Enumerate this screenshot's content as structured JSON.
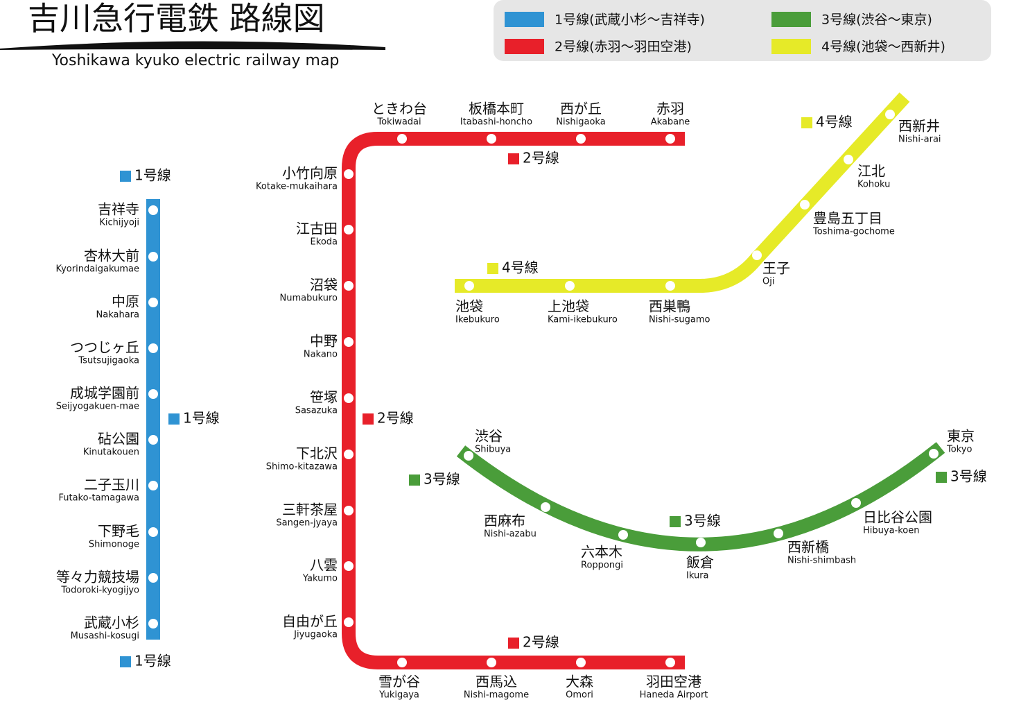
{
  "header": {
    "title": "吉川急行電鉄 路線図",
    "subtitle": "Yoshikawa kyuko electric railway map"
  },
  "legend": [
    {
      "label": "1号線(武蔵小杉〜吉祥寺)",
      "color": "#2f93d3"
    },
    {
      "label": "2号線(赤羽〜羽田空港)",
      "color": "#e8202a"
    },
    {
      "label": "3号線(渋谷〜東京)",
      "color": "#4a9d3a"
    },
    {
      "label": "4号線(池袋〜西新井)",
      "color": "#e6ea28"
    }
  ],
  "lines": [
    {
      "color": "#2f93d3",
      "labels": [
        "1号線",
        "1号線",
        "1号線"
      ],
      "stations": [
        {
          "name": "吉祥寺",
          "name_en": "Kichijyoji"
        },
        {
          "name": "杏林大前",
          "name_en": "Kyorindaigakumae"
        },
        {
          "name": "中原",
          "name_en": "Nakahara"
        },
        {
          "name": "つつじヶ丘",
          "name_en": "Tsutsujigaoka"
        },
        {
          "name": "成城学園前",
          "name_en": "Seijyogakuen-mae"
        },
        {
          "name": "砧公園",
          "name_en": "Kinutakouen"
        },
        {
          "name": "二子玉川",
          "name_en": "Futako-tamagawa"
        },
        {
          "name": "下野毛",
          "name_en": "Shimonoge"
        },
        {
          "name": "等々力競技場",
          "name_en": "Todoroki-kyogijyo"
        },
        {
          "name": "武蔵小杉",
          "name_en": "Musashi-kosugi"
        }
      ]
    },
    {
      "color": "#e8202a",
      "labels": [
        "2号線",
        "2号線",
        "2号線"
      ],
      "stations": [
        {
          "name": "赤羽",
          "name_en": "Akabane"
        },
        {
          "name": "西が丘",
          "name_en": "Nishigaoka"
        },
        {
          "name": "板橋本町",
          "name_en": "Itabashi-honcho"
        },
        {
          "name": "ときわ台",
          "name_en": "Tokiwadai"
        },
        {
          "name": "小竹向原",
          "name_en": "Kotake-mukaihara"
        },
        {
          "name": "江古田",
          "name_en": "Ekoda"
        },
        {
          "name": "沼袋",
          "name_en": "Numabukuro"
        },
        {
          "name": "中野",
          "name_en": "Nakano"
        },
        {
          "name": "笹塚",
          "name_en": "Sasazuka"
        },
        {
          "name": "下北沢",
          "name_en": "Shimo-kitazawa"
        },
        {
          "name": "三軒茶屋",
          "name_en": "Sangen-jyaya"
        },
        {
          "name": "八雲",
          "name_en": "Yakumo"
        },
        {
          "name": "自由が丘",
          "name_en": "Jiyugaoka"
        },
        {
          "name": "雪が谷",
          "name_en": "Yukigaya"
        },
        {
          "name": "西馬込",
          "name_en": "Nishi-magome"
        },
        {
          "name": "大森",
          "name_en": "Omori"
        },
        {
          "name": "羽田空港",
          "name_en": "Haneda Airport"
        }
      ]
    },
    {
      "color": "#4a9d3a",
      "labels": [
        "3号線",
        "3号線",
        "3号線"
      ],
      "stations": [
        {
          "name": "渋谷",
          "name_en": "Shibuya"
        },
        {
          "name": "西麻布",
          "name_en": "Nishi-azabu"
        },
        {
          "name": "六本木",
          "name_en": "Roppongi"
        },
        {
          "name": "飯倉",
          "name_en": "Ikura"
        },
        {
          "name": "西新橋",
          "name_en": "Nishi-shimbash"
        },
        {
          "name": "日比谷公園",
          "name_en": "Hibuya-koen"
        },
        {
          "name": "東京",
          "name_en": "Tokyo"
        }
      ]
    },
    {
      "color": "#e6ea28",
      "labels": [
        "4号線",
        "4号線"
      ],
      "stations": [
        {
          "name": "池袋",
          "name_en": "Ikebukuro"
        },
        {
          "name": "上池袋",
          "name_en": "Kami-ikebukuro"
        },
        {
          "name": "西巣鴨",
          "name_en": "Nishi-sugamo"
        },
        {
          "name": "王子",
          "name_en": "Oji"
        },
        {
          "name": "豊島五丁目",
          "name_en": "Toshima-gochome"
        },
        {
          "name": "江北",
          "name_en": "Kohoku"
        },
        {
          "name": "西新井",
          "name_en": "Nishi-arai"
        }
      ]
    }
  ]
}
